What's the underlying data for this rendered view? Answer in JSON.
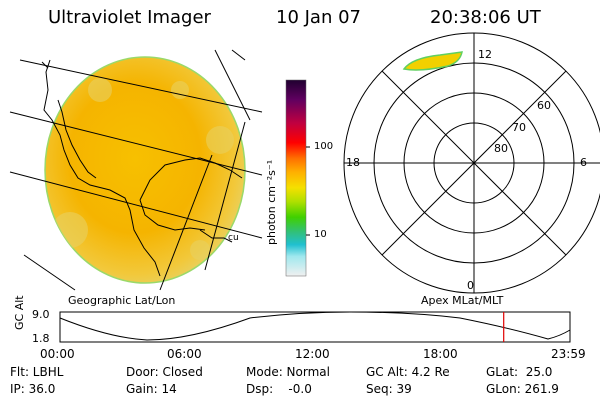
{
  "header": {
    "title": "Ultraviolet Imager",
    "date": "10 Jan 07",
    "time": "20:38:06 UT"
  },
  "colorbar": {
    "unit_label": "photon cm⁻²s⁻¹",
    "tick_100": "100",
    "tick_10": "10"
  },
  "polar": {
    "mlt_12": "12",
    "mlt_18": "18",
    "mlt_6": "6",
    "mlt_0": "0",
    "lat_60": "60",
    "lat_70": "70",
    "lat_80": "80"
  },
  "panel_labels": {
    "left": "Geographic Lat/Lon",
    "right": "Apex MLat/MLT"
  },
  "altitude_plot": {
    "ylabel": "GC Alt",
    "y_max": "9.0",
    "y_min": "1.8",
    "x_ticks": [
      "00:00",
      "06:00",
      "12:00",
      "18:00",
      "23:59"
    ],
    "current_marker_fraction": 0.87,
    "marker_color": "#e00000"
  },
  "status": {
    "flt": "Flt: LBHL",
    "ip": "IP: 36.0",
    "door": "Door: Closed",
    "gain": "Gain: 14",
    "mode": "Mode: Normal",
    "dsp": "Dsp:    -0.0",
    "gc_alt": "GC Alt: 4.2 Re",
    "seq": "Seq: 39",
    "glat": "GLat:  25.0",
    "glon": "GLon: 261.9"
  }
}
